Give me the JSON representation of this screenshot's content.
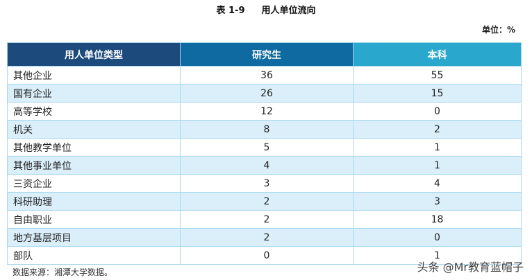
{
  "title": {
    "number": "表 1-9",
    "text": "用人单位流向"
  },
  "unit": "单位：%",
  "table": {
    "headers": [
      "用人单位类型",
      "研究生",
      "本科"
    ],
    "header_colors": [
      "#1d4a7c",
      "#0e6aa0",
      "#2aa7cc"
    ],
    "rows": [
      [
        "其他企业",
        "36",
        "55"
      ],
      [
        "国有企业",
        "26",
        "15"
      ],
      [
        "高等学校",
        "12",
        "0"
      ],
      [
        "机关",
        "8",
        "2"
      ],
      [
        "其他教学单位",
        "5",
        "1"
      ],
      [
        "其他事业单位",
        "4",
        "1"
      ],
      [
        "三资企业",
        "3",
        "4"
      ],
      [
        "科研助理",
        "2",
        "3"
      ],
      [
        "自由职业",
        "2",
        "18"
      ],
      [
        "地方基层项目",
        "2",
        "0"
      ],
      [
        "部队",
        "0",
        "1"
      ]
    ]
  },
  "source": "数据来源：湘潭大学数据。",
  "watermark": "头条 @Mr教育蓝帽子"
}
